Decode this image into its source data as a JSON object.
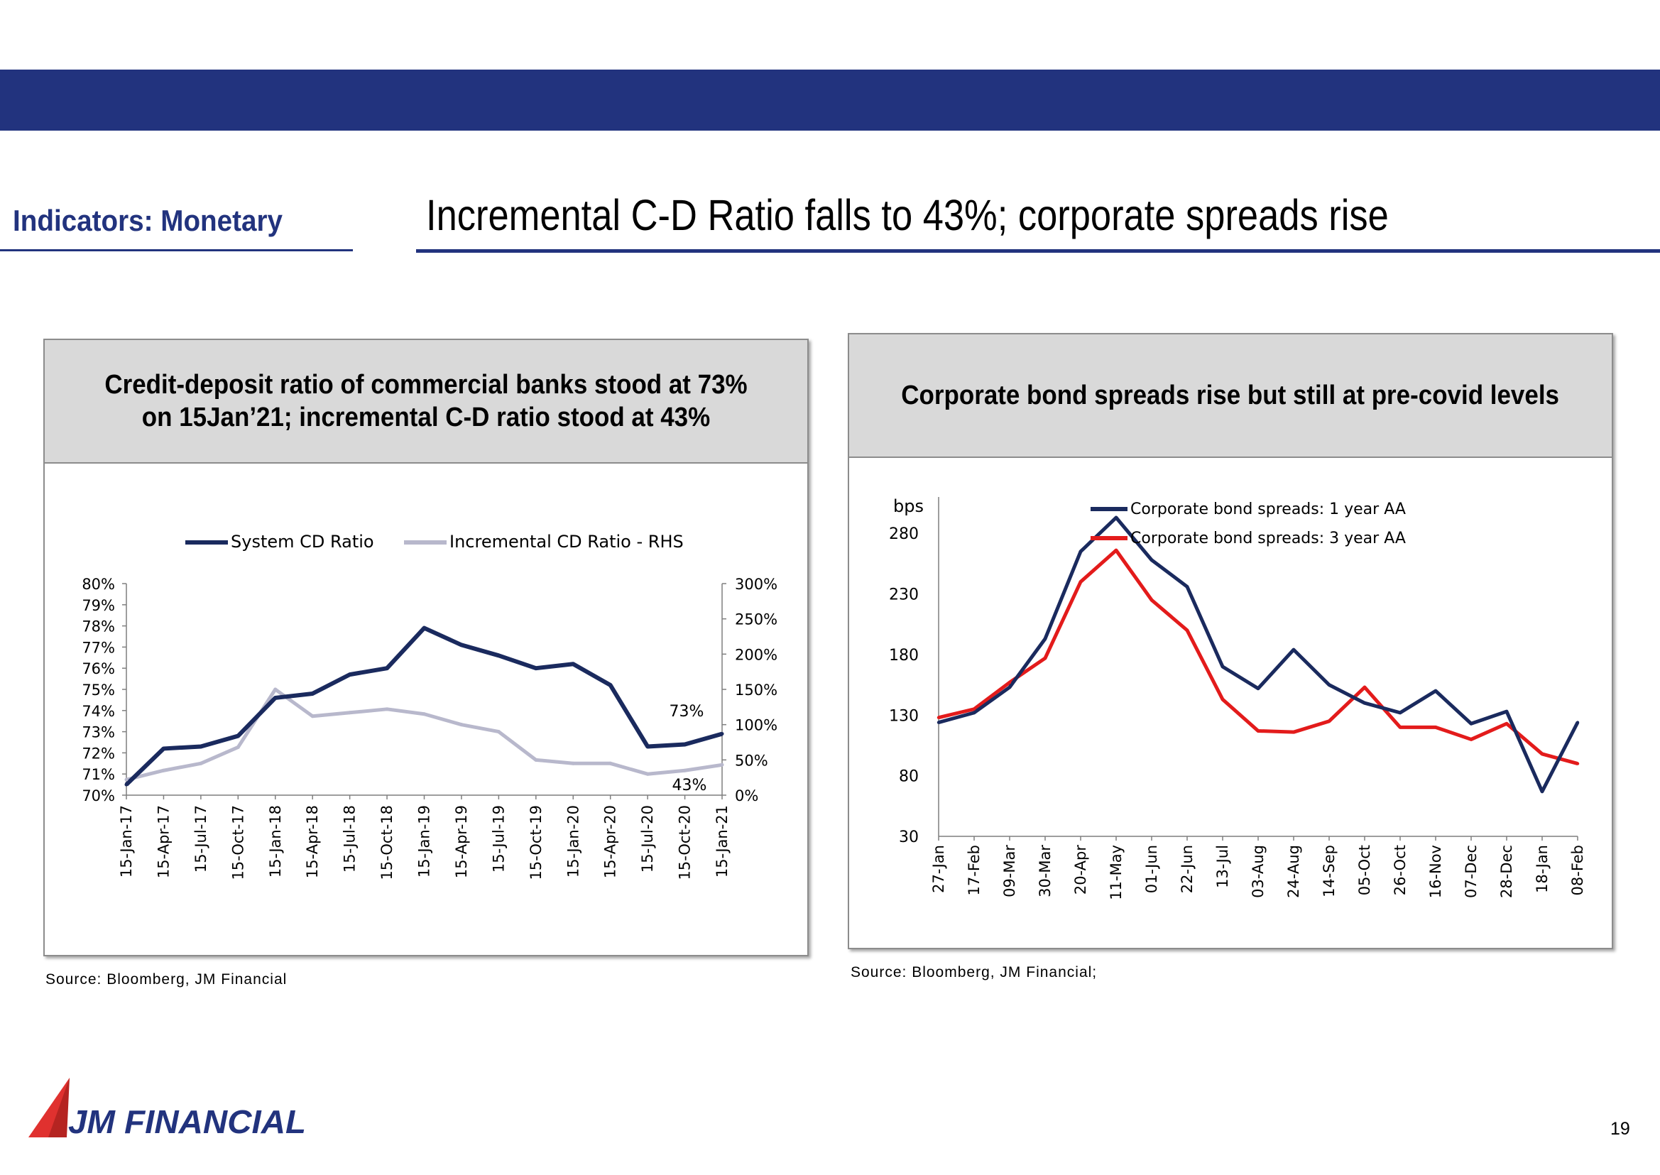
{
  "header": {
    "section_title": "Indicators: Monetary",
    "headline": "Incremental C-D Ratio falls to 43%; corporate spreads rise"
  },
  "colors": {
    "brand_navy": "#22337e",
    "series_dark": "#1a2a5e",
    "series_light": "#b8b8cc",
    "series_red": "#e31b1b",
    "logo_red": "#e0312f"
  },
  "left_panel": {
    "title_line1": "Credit-deposit ratio of commercial banks stood at 73%",
    "title_line2": "on 15Jan’21; incremental C-D ratio stood at 43%",
    "source": "Source:   Bloomberg, JM Financial"
  },
  "right_panel": {
    "title": "Corporate bond spreads rise but still at pre-covid levels",
    "source": "Source:   Bloomberg, JM Financial;"
  },
  "chart_data": [
    {
      "type": "line",
      "legend_position": "top",
      "grid": false,
      "x": [
        "15-Jan-17",
        "15-Apr-17",
        "15-Jul-17",
        "15-Oct-17",
        "15-Jan-18",
        "15-Apr-18",
        "15-Jul-18",
        "15-Oct-18",
        "15-Jan-19",
        "15-Apr-19",
        "15-Jul-19",
        "15-Oct-19",
        "15-Jan-20",
        "15-Apr-20",
        "15-Jul-20",
        "15-Oct-20",
        "15-Jan-21"
      ],
      "y_left": {
        "ticks": [
          "70%",
          "71%",
          "72%",
          "73%",
          "74%",
          "75%",
          "76%",
          "77%",
          "78%",
          "79%",
          "80%"
        ],
        "ylim": [
          70,
          80
        ]
      },
      "y_right": {
        "ticks": [
          "0%",
          "50%",
          "100%",
          "150%",
          "200%",
          "250%",
          "300%"
        ],
        "ylim": [
          0,
          300
        ]
      },
      "series": [
        {
          "name": "System CD Ratio",
          "axis": "left",
          "color": "#1a2a5e",
          "values": [
            70.5,
            72.2,
            72.3,
            72.8,
            74.6,
            74.8,
            75.7,
            76.0,
            77.9,
            77.1,
            76.6,
            76.0,
            76.2,
            75.2,
            72.3,
            72.4,
            72.9
          ]
        },
        {
          "name": "Incremental CD Ratio - RHS",
          "axis": "right",
          "color": "#b8b8cc",
          "values": [
            22,
            35,
            45,
            68,
            150,
            112,
            117,
            122,
            115,
            100,
            90,
            50,
            45,
            45,
            30,
            35,
            43
          ]
        }
      ],
      "annotations": [
        "73%",
        "43%"
      ]
    },
    {
      "type": "line",
      "legend_position": "top",
      "grid": false,
      "ylabel": "bps",
      "ylim": [
        30,
        310
      ],
      "y_ticks": [
        30,
        80,
        130,
        180,
        230,
        280
      ],
      "x": [
        "27-Jan",
        "17-Feb",
        "09-Mar",
        "30-Mar",
        "20-Apr",
        "11-May",
        "01-Jun",
        "22-Jun",
        "13-Jul",
        "03-Aug",
        "24-Aug",
        "14-Sep",
        "05-Oct",
        "26-Oct",
        "16-Nov",
        "07-Dec",
        "28-Dec",
        "18-Jan",
        "08-Feb"
      ],
      "series": [
        {
          "name": "Corporate bond spreads: 1 year AA",
          "color": "#1a2a5e",
          "values": [
            124,
            132,
            153,
            193,
            265,
            293,
            258,
            236,
            170,
            152,
            184,
            155,
            140,
            132,
            150,
            123,
            133,
            67,
            124
          ]
        },
        {
          "name": "Corporate bond spreads: 3 year AA",
          "color": "#e31b1b",
          "values": [
            128,
            135,
            157,
            177,
            240,
            266,
            225,
            200,
            143,
            117,
            116,
            125,
            153,
            120,
            120,
            110,
            123,
            98,
            90
          ]
        }
      ]
    }
  ],
  "footer": {
    "logo_text": "JM FINANCIAL",
    "page_number": "19"
  }
}
